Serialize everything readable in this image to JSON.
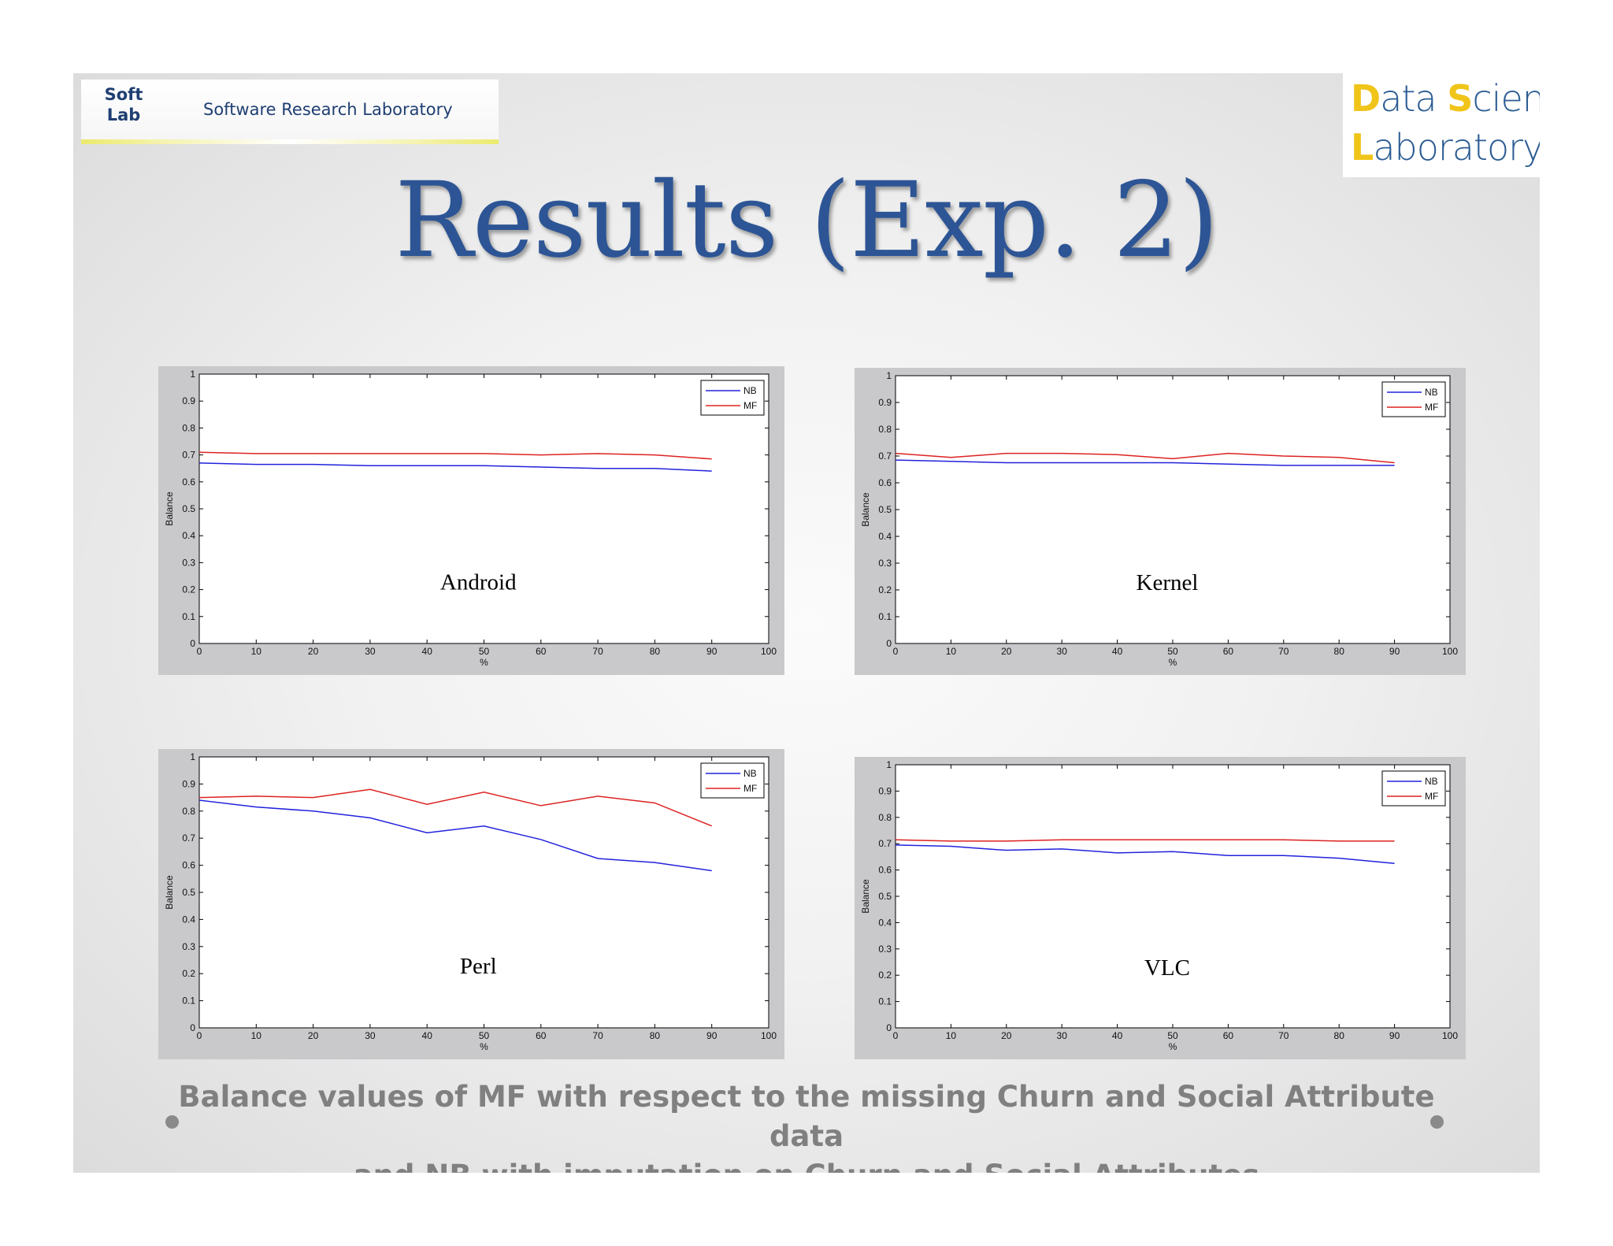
{
  "header": {
    "softlab_logo": "Soft Lab",
    "softlab_logo_line1": "Soft",
    "softlab_logo_line2": "Lab",
    "softlab_name": "Software Research Laboratory",
    "dsl_logo": "Data Science Laboratory",
    "dsl_word1_initial": "D",
    "dsl_word1_rest": "ata ",
    "dsl_word2_initial": "S",
    "dsl_word2_rest": "cience",
    "dsl_word3_initial": "L",
    "dsl_word3_rest": "aboratory",
    "dsl_accent_color": "#f0c419",
    "dsl_text_color": "#2b5c93"
  },
  "title": "Results (Exp. 2)",
  "caption": {
    "line1": "Balance values of MF with respect to the missing Churn and Social Attribute data",
    "line2": "and NB with imputation on Churn and Social Attributes"
  },
  "chart_data": [
    {
      "type": "line",
      "annotation": "Android",
      "xlabel": "%",
      "ylabel": "Balance",
      "xlim": [
        0,
        100
      ],
      "ylim": [
        0,
        1
      ],
      "xticks": [
        0,
        10,
        20,
        30,
        40,
        50,
        60,
        70,
        80,
        90,
        100
      ],
      "yticks": [
        0,
        0.1,
        0.2,
        0.3,
        0.4,
        0.5,
        0.6,
        0.7,
        0.8,
        0.9,
        1
      ],
      "legend_position": "top-right",
      "x": [
        0,
        10,
        20,
        30,
        40,
        50,
        60,
        70,
        80,
        90
      ],
      "series": [
        {
          "name": "NB",
          "color": "#2222dd",
          "values": [
            0.67,
            0.665,
            0.665,
            0.66,
            0.66,
            0.66,
            0.655,
            0.65,
            0.65,
            0.64
          ]
        },
        {
          "name": "MF",
          "color": "#dd2222",
          "values": [
            0.71,
            0.705,
            0.705,
            0.705,
            0.705,
            0.705,
            0.7,
            0.705,
            0.7,
            0.685
          ]
        }
      ]
    },
    {
      "type": "line",
      "annotation": "Kernel",
      "xlabel": "%",
      "ylabel": "Balance",
      "xlim": [
        0,
        100
      ],
      "ylim": [
        0,
        1
      ],
      "xticks": [
        0,
        10,
        20,
        30,
        40,
        50,
        60,
        70,
        80,
        90,
        100
      ],
      "yticks": [
        0,
        0.1,
        0.2,
        0.3,
        0.4,
        0.5,
        0.6,
        0.7,
        0.8,
        0.9,
        1
      ],
      "legend_position": "top-right",
      "x": [
        0,
        10,
        20,
        30,
        40,
        50,
        60,
        70,
        80,
        90
      ],
      "series": [
        {
          "name": "NB",
          "color": "#2222dd",
          "values": [
            0.685,
            0.68,
            0.675,
            0.675,
            0.675,
            0.675,
            0.67,
            0.665,
            0.665,
            0.665
          ]
        },
        {
          "name": "MF",
          "color": "#dd2222",
          "values": [
            0.71,
            0.695,
            0.71,
            0.71,
            0.705,
            0.69,
            0.71,
            0.7,
            0.695,
            0.675
          ]
        }
      ]
    },
    {
      "type": "line",
      "annotation": "Perl",
      "xlabel": "%",
      "ylabel": "Balance",
      "xlim": [
        0,
        100
      ],
      "ylim": [
        0,
        1
      ],
      "xticks": [
        0,
        10,
        20,
        30,
        40,
        50,
        60,
        70,
        80,
        90,
        100
      ],
      "yticks": [
        0,
        0.1,
        0.2,
        0.3,
        0.4,
        0.5,
        0.6,
        0.7,
        0.8,
        0.9,
        1
      ],
      "legend_position": "top-right",
      "x": [
        0,
        10,
        20,
        30,
        40,
        50,
        60,
        70,
        80,
        90
      ],
      "series": [
        {
          "name": "NB",
          "color": "#2222dd",
          "values": [
            0.84,
            0.815,
            0.8,
            0.775,
            0.72,
            0.745,
            0.695,
            0.625,
            0.61,
            0.58
          ]
        },
        {
          "name": "MF",
          "color": "#dd2222",
          "values": [
            0.85,
            0.855,
            0.85,
            0.88,
            0.825,
            0.87,
            0.82,
            0.855,
            0.83,
            0.745
          ]
        }
      ]
    },
    {
      "type": "line",
      "annotation": "VLC",
      "xlabel": "%",
      "ylabel": "Balance",
      "xlim": [
        0,
        100
      ],
      "ylim": [
        0,
        1
      ],
      "xticks": [
        0,
        10,
        20,
        30,
        40,
        50,
        60,
        70,
        80,
        90,
        100
      ],
      "yticks": [
        0,
        0.1,
        0.2,
        0.3,
        0.4,
        0.5,
        0.6,
        0.7,
        0.8,
        0.9,
        1
      ],
      "legend_position": "top-right",
      "x": [
        0,
        10,
        20,
        30,
        40,
        50,
        60,
        70,
        80,
        90
      ],
      "series": [
        {
          "name": "NB",
          "color": "#2222dd",
          "values": [
            0.695,
            0.69,
            0.675,
            0.68,
            0.665,
            0.67,
            0.655,
            0.655,
            0.645,
            0.625
          ]
        },
        {
          "name": "MF",
          "color": "#dd2222",
          "values": [
            0.715,
            0.71,
            0.71,
            0.715,
            0.715,
            0.715,
            0.715,
            0.715,
            0.71,
            0.71
          ]
        }
      ]
    }
  ]
}
